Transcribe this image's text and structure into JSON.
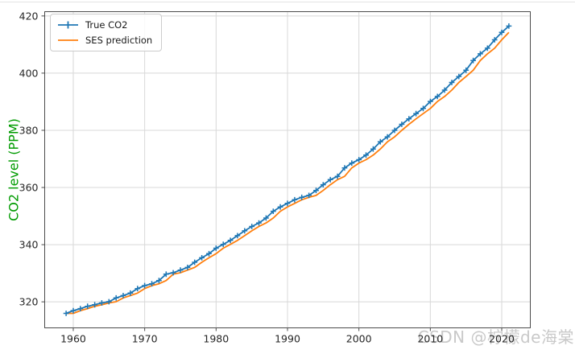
{
  "watermark": {
    "text": "CSDN @柠檬de海棠",
    "color": "#c9c9c9"
  },
  "chart_data": {
    "type": "line",
    "title": "",
    "xlabel": "",
    "ylabel": "CO2 level (PPM)",
    "ylabel_color": "#009b00",
    "x": [
      1959,
      1960,
      1961,
      1962,
      1963,
      1964,
      1965,
      1966,
      1967,
      1968,
      1969,
      1970,
      1971,
      1972,
      1973,
      1974,
      1975,
      1976,
      1977,
      1978,
      1979,
      1980,
      1981,
      1982,
      1983,
      1984,
      1985,
      1986,
      1987,
      1988,
      1989,
      1990,
      1991,
      1992,
      1993,
      1994,
      1995,
      1996,
      1997,
      1998,
      1999,
      2000,
      2001,
      2002,
      2003,
      2004,
      2005,
      2006,
      2007,
      2008,
      2009,
      2010,
      2011,
      2012,
      2013,
      2014,
      2015,
      2016,
      2017,
      2018,
      2019,
      2020,
      2021
    ],
    "series": [
      {
        "name": "True CO2",
        "color": "#1f77b4",
        "marker": "plus",
        "values": [
          315.97,
          316.91,
          317.64,
          318.45,
          318.99,
          319.62,
          320.04,
          321.37,
          322.18,
          323.05,
          324.62,
          325.68,
          326.32,
          327.46,
          329.68,
          330.19,
          331.12,
          332.03,
          333.84,
          335.41,
          336.84,
          338.76,
          340.12,
          341.48,
          343.15,
          344.85,
          346.35,
          347.61,
          349.31,
          351.69,
          353.2,
          354.45,
          355.7,
          356.54,
          357.21,
          358.96,
          360.97,
          362.74,
          363.88,
          366.84,
          368.54,
          369.71,
          371.32,
          373.45,
          375.98,
          377.7,
          379.98,
          382.09,
          384.02,
          385.83,
          387.64,
          390.1,
          391.85,
          394.06,
          396.74,
          398.81,
          401.01,
          404.41,
          406.76,
          408.72,
          411.66,
          414.24,
          416.45
        ]
      },
      {
        "name": "SES prediction",
        "color": "#ff7f0e",
        "marker": "none",
        "values": [
          315.97,
          315.97,
          316.91,
          317.64,
          318.45,
          318.99,
          319.62,
          320.04,
          321.37,
          322.18,
          323.05,
          324.62,
          325.68,
          326.32,
          327.46,
          329.68,
          330.19,
          331.12,
          332.03,
          333.84,
          335.41,
          336.84,
          338.76,
          340.12,
          341.48,
          343.15,
          344.85,
          346.35,
          347.61,
          349.31,
          351.69,
          353.2,
          354.45,
          355.7,
          356.54,
          357.21,
          358.96,
          360.97,
          362.74,
          363.88,
          366.84,
          368.54,
          369.71,
          371.32,
          373.45,
          375.98,
          377.7,
          379.98,
          382.09,
          384.02,
          385.83,
          387.64,
          390.1,
          391.85,
          394.06,
          396.74,
          398.81,
          401.01,
          404.41,
          406.76,
          408.72,
          411.66,
          414.24
        ]
      }
    ],
    "xticks": [
      1960,
      1970,
      1980,
      1990,
      2000,
      2010,
      2020
    ],
    "yticks": [
      320,
      340,
      360,
      380,
      400,
      420
    ],
    "xlim": [
      1956.0,
      2024.0
    ],
    "ylim": [
      310.9,
      421.5
    ],
    "grid": true,
    "grid_color": "#d8d8d8",
    "spine_color": "#4c4c4c",
    "tick_color": "#262626",
    "legend_position": "upper-left"
  }
}
